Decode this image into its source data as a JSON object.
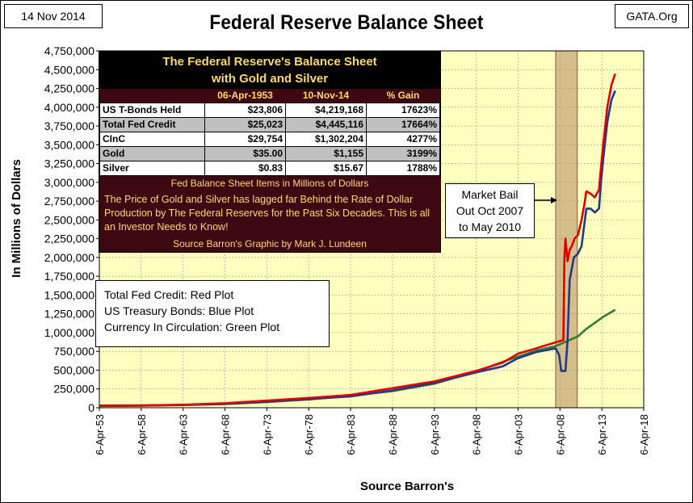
{
  "header": {
    "date": "14 Nov 2014",
    "source": "GATA.Org",
    "title": "Federal Reserve Balance Sheet"
  },
  "table": {
    "title_line1": "The Federal Reserve's Balance Sheet",
    "title_line2": "with Gold and Silver",
    "columns": [
      "",
      "06-Apr-1953",
      "10-Nov-14",
      "% Gain"
    ],
    "rows": [
      [
        "US T-Bonds Held",
        "$23,806",
        "$4,219,168",
        "17623%"
      ],
      [
        "Total Fed Credit",
        "$25,023",
        "$4,445,116",
        "17664%"
      ],
      [
        "CInC",
        "$29,754",
        "$1,302,204",
        "4277%"
      ],
      [
        "Gold",
        "$35.00",
        "$1,155",
        "3199%"
      ],
      [
        "Silver",
        "$0.83",
        "$15.67",
        "1788%"
      ]
    ],
    "note1": "Fed Balance Sheet Items in Millions of Dollars",
    "note2": "The Price of Gold and Silver has lagged far Behind the Rate of Dollar Production by The Federal Reserves for the Past Six Decades.  This is all an Investor Needs to Know!",
    "note3": "Source Barron's   Graphic by Mark J. Lundeen"
  },
  "legend": {
    "line1": "Total Fed Credit:  Red Plot",
    "line2": "US Treasury Bonds: Blue Plot",
    "line3": "Currency In Circulation: Green Plot"
  },
  "annotation": {
    "line1": "Market Bail",
    "line2": "Out Oct 2007",
    "line3": "to May 2010"
  },
  "colors": {
    "plot_bg": "#ffffc0",
    "red": "#e00000",
    "blue": "#1f3a8a",
    "green": "#2e7d32",
    "shade": "#c8a878"
  },
  "chart_data": {
    "type": "line",
    "title": "Federal Reserve Balance Sheet",
    "xlabel": "Source Barron's",
    "ylabel": "In Millions of Dollars",
    "ylim": [
      0,
      4750000
    ],
    "xlim": [
      "1953-04-06",
      "2018-04-06"
    ],
    "grid": true,
    "yticks": [
      0,
      250000,
      500000,
      750000,
      1000000,
      1250000,
      1500000,
      1750000,
      2000000,
      2250000,
      2500000,
      2750000,
      3000000,
      3250000,
      3500000,
      3750000,
      4000000,
      4250000,
      4500000,
      4750000
    ],
    "ytick_labels": [
      "0",
      "250,000",
      "500,000",
      "750,000",
      "1,000,000",
      "1,250,000",
      "1,500,000",
      "1,750,000",
      "2,000,000",
      "2,250,000",
      "2,500,000",
      "2,750,000",
      "3,000,000",
      "3,250,000",
      "3,500,000",
      "3,750,000",
      "4,000,000",
      "4,250,000",
      "4,500,000",
      "4,750,000"
    ],
    "xticks": [
      "1953-04-06",
      "1958-04-06",
      "1963-04-06",
      "1968-04-06",
      "1973-04-06",
      "1978-04-06",
      "1983-04-06",
      "1988-04-06",
      "1993-04-06",
      "1998-04-06",
      "2003-04-06",
      "2008-04-06",
      "2013-04-06",
      "2018-04-06"
    ],
    "xtick_labels": [
      "6-Apr-53",
      "6-Apr-58",
      "6-Apr-63",
      "6-Apr-68",
      "6-Apr-73",
      "6-Apr-78",
      "6-Apr-83",
      "6-Apr-88",
      "6-Apr-93",
      "6-Apr-98",
      "6-Apr-03",
      "6-Apr-08",
      "6-Apr-13",
      "6-Apr-18"
    ],
    "shaded_region": [
      "2007-10-01",
      "2010-05-01"
    ],
    "series": [
      {
        "name": "Total Fed Credit",
        "color": "#e00000",
        "x": [
          "1953-04-06",
          "1958-04-06",
          "1963-04-06",
          "1968-04-06",
          "1973-04-06",
          "1978-04-06",
          "1983-04-06",
          "1988-04-06",
          "1993-04-06",
          "1998-04-06",
          "2001-06-01",
          "2003-04-06",
          "2005-06-01",
          "2007-10-01",
          "2008-09-01",
          "2008-10-15",
          "2008-12-01",
          "2009-03-01",
          "2009-06-01",
          "2009-09-01",
          "2010-01-01",
          "2010-06-01",
          "2010-11-01",
          "2011-03-01",
          "2011-06-01",
          "2011-12-01",
          "2012-06-01",
          "2012-12-01",
          "2013-03-01",
          "2013-06-01",
          "2013-12-01",
          "2014-06-01",
          "2014-11-10"
        ],
        "values": [
          25023,
          29000,
          40000,
          60000,
          95000,
          130000,
          170000,
          260000,
          350000,
          490000,
          600000,
          720000,
          790000,
          870000,
          900000,
          2000000,
          2250000,
          1950000,
          2100000,
          2150000,
          2250000,
          2300000,
          2500000,
          2700000,
          2880000,
          2850000,
          2800000,
          2900000,
          3200000,
          3500000,
          4000000,
          4300000,
          4445116
        ]
      },
      {
        "name": "US T-Bonds Held",
        "color": "#1f3a8a",
        "x": [
          "1953-04-06",
          "1958-04-06",
          "1963-04-06",
          "1968-04-06",
          "1973-04-06",
          "1978-04-06",
          "1983-04-06",
          "1988-04-06",
          "1993-04-06",
          "1998-04-06",
          "2001-06-01",
          "2003-04-06",
          "2005-06-01",
          "2007-10-01",
          "2008-03-01",
          "2008-06-01",
          "2008-12-01",
          "2009-03-01",
          "2009-06-01",
          "2009-12-01",
          "2010-06-01",
          "2010-11-01",
          "2011-06-01",
          "2011-12-01",
          "2012-06-01",
          "2012-12-01",
          "2013-03-01",
          "2013-06-01",
          "2013-12-01",
          "2014-06-01",
          "2014-11-10"
        ],
        "values": [
          23806,
          27000,
          35000,
          50000,
          80000,
          115000,
          150000,
          230000,
          330000,
          470000,
          550000,
          660000,
          740000,
          790000,
          700000,
          490000,
          490000,
          900000,
          1700000,
          2000000,
          2050000,
          2150000,
          2650000,
          2650000,
          2600000,
          2650000,
          3000000,
          3300000,
          3800000,
          4100000,
          4219168
        ]
      },
      {
        "name": "CInC",
        "color": "#2e7d32",
        "x": [
          "1953-04-06",
          "1958-04-06",
          "1963-04-06",
          "1968-04-06",
          "1973-04-06",
          "1978-04-06",
          "1983-04-06",
          "1988-04-06",
          "1993-04-06",
          "1998-04-06",
          "2001-06-01",
          "2003-04-06",
          "2005-06-01",
          "2007-10-01",
          "2009-01-01",
          "2010-06-01",
          "2011-06-01",
          "2012-06-01",
          "2013-06-01",
          "2014-11-10"
        ],
        "values": [
          29754,
          32000,
          38000,
          48000,
          75000,
          110000,
          160000,
          220000,
          320000,
          480000,
          610000,
          680000,
          760000,
          820000,
          880000,
          950000,
          1050000,
          1130000,
          1210000,
          1302204
        ]
      }
    ]
  }
}
